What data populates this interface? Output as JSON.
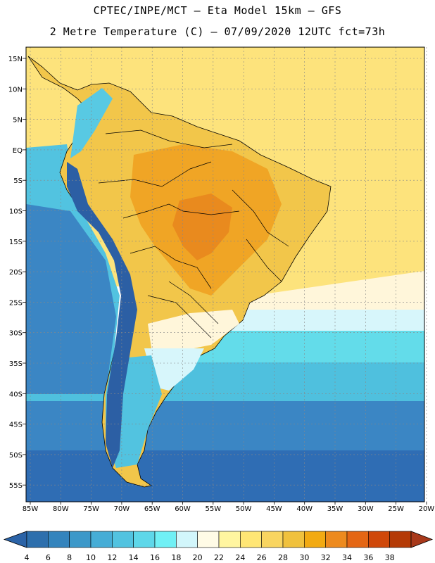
{
  "header": {
    "line1": "CPTEC/INPE/MCT –  Eta Model 15km – GFS",
    "line2": "2 Metre Temperature (C) – 07/09/2020 12UTC fct=73h"
  },
  "map": {
    "lat_labels": [
      "15N",
      "10N",
      "5N",
      "EQ",
      "5S",
      "10S",
      "15S",
      "20S",
      "25S",
      "30S",
      "35S",
      "40S",
      "45S",
      "50S",
      "55S"
    ],
    "lon_labels": [
      "85W",
      "80W",
      "75W",
      "70W",
      "65W",
      "60W",
      "55W",
      "50W",
      "45W",
      "40W",
      "35W",
      "30W",
      "25W",
      "20W"
    ]
  },
  "colorbar": {
    "ticks": [
      "4",
      "6",
      "8",
      "10",
      "12",
      "14",
      "16",
      "18",
      "20",
      "22",
      "24",
      "26",
      "28",
      "30",
      "32",
      "34",
      "36",
      "38"
    ],
    "colors": [
      "#2d6fad",
      "#3484bd",
      "#3c98c9",
      "#46add6",
      "#52c3e0",
      "#5ed7e9",
      "#70f0f5",
      "#d2f6fb",
      "#fffbe6",
      "#fff5a0",
      "#ffe675",
      "#f9d560",
      "#f0c13d",
      "#f2aa12",
      "#ed8a1e",
      "#e46614",
      "#cf480a",
      "#b43a06"
    ],
    "under_color": "#2b63a7",
    "over_color": "#a8391a"
  },
  "colors": {
    "ocean_south_deep": "#2f6db4",
    "ocean_south": "#3b86c4",
    "ocean_mid": "#4fc0de",
    "ocean_cyan": "#63dcea",
    "ocean_pale": "#d7f6fb",
    "ocean_cream": "#fff6da",
    "ocean_north": "#fde37c",
    "land_main": "#f2c64a",
    "land_hot": "#f0a525",
    "land_hotter": "#e98a1e",
    "andes_cold": "#2c5fa4",
    "andes_mid": "#58c9e3"
  }
}
